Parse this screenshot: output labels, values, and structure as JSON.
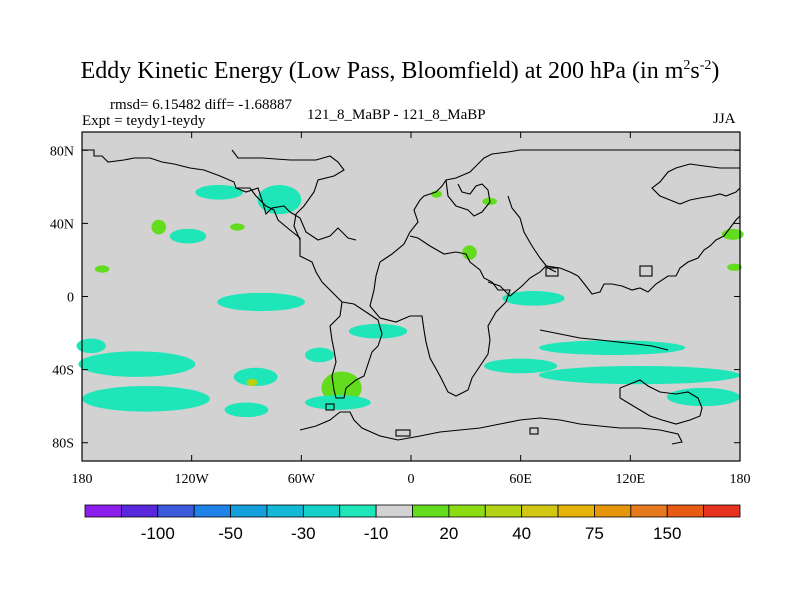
{
  "chart_data": {
    "type": "heatmap",
    "title": {
      "main": "Eddy Kinetic Energy (Low Pass, Bloomfield) at 200 hPa (in m",
      "sup1": "2",
      "mid": "s",
      "sup2": "-2",
      "end": ")"
    },
    "stats": "rmsd= 6.15482 diff= -1.68887",
    "expt": "Expt = teydy1-teydy",
    "case_label": "121_8_MaBP - 121_8_MaBP",
    "season": "JJA",
    "lon_range": [
      -180,
      180
    ],
    "lat_range": [
      -90,
      90
    ],
    "x_ticks": [
      {
        "value": -180,
        "label": "180"
      },
      {
        "value": -120,
        "label": "120W"
      },
      {
        "value": -60,
        "label": "60W"
      },
      {
        "value": 0,
        "label": "0"
      },
      {
        "value": 60,
        "label": "60E"
      },
      {
        "value": 120,
        "label": "120E"
      },
      {
        "value": 180,
        "label": "180"
      }
    ],
    "y_ticks": [
      {
        "value": 80,
        "label": "80N"
      },
      {
        "value": 40,
        "label": "40N"
      },
      {
        "value": 0,
        "label": "0"
      },
      {
        "value": -40,
        "label": "40S"
      },
      {
        "value": -80,
        "label": "80S"
      }
    ],
    "colorbar": {
      "colors": [
        "#8c1eeb",
        "#5a28dc",
        "#3c5adc",
        "#1e82e6",
        "#14a0dc",
        "#14b9d7",
        "#14d2c8",
        "#1ee6b9",
        "#d2d2d2",
        "#64dc1e",
        "#8cdc14",
        "#b4d214",
        "#d2c814",
        "#e6b40a",
        "#e6960a",
        "#e6781e",
        "#e65a14",
        "#e6321e"
      ],
      "labels": [
        {
          "index": 2,
          "text": "-100"
        },
        {
          "index": 4,
          "text": "-50"
        },
        {
          "index": 6,
          "text": "-30"
        },
        {
          "index": 8,
          "text": "-10"
        },
        {
          "index": 10,
          "text": "20"
        },
        {
          "index": 12,
          "text": "40"
        },
        {
          "index": 14,
          "text": "75"
        },
        {
          "index": 16,
          "text": "150"
        }
      ]
    },
    "background_color": "#d2d2d2",
    "anomalies": [
      {
        "name": "neg-n-pacific-1",
        "lon": -105,
        "lat": 57,
        "rlon": 13,
        "rlat": 4,
        "level": "neg"
      },
      {
        "name": "neg-n-america-1",
        "lon": -72,
        "lat": 53,
        "rlon": 12,
        "rlat": 8,
        "level": "neg"
      },
      {
        "name": "pos-n-atlantic-1",
        "lon": 14,
        "lat": 56,
        "rlon": 3,
        "rlat": 2,
        "level": "pos"
      },
      {
        "name": "pos-central-asia-1",
        "lon": 43,
        "lat": 52,
        "rlon": 4,
        "rlat": 2,
        "level": "pos"
      },
      {
        "name": "pos-e-pacific-1",
        "lon": -138,
        "lat": 38,
        "rlon": 4,
        "rlat": 4,
        "level": "pos"
      },
      {
        "name": "pos-atlantic-1",
        "lon": -95,
        "lat": 38,
        "rlon": 4,
        "rlat": 2,
        "level": "pos"
      },
      {
        "name": "neg-mexico-1",
        "lon": -122,
        "lat": 33,
        "rlon": 10,
        "rlat": 4,
        "level": "neg"
      },
      {
        "name": "pos-africa-1",
        "lon": 32,
        "lat": 24,
        "rlon": 4,
        "rlat": 4,
        "level": "pos"
      },
      {
        "name": "pos-w-pacific-1",
        "lon": -169,
        "lat": 15,
        "rlon": 4,
        "rlat": 2,
        "level": "pos"
      },
      {
        "name": "pos-w-pacific-2",
        "lon": 177,
        "lat": 16,
        "rlon": 4,
        "rlat": 2,
        "level": "pos"
      },
      {
        "name": "pos-w-pacific-3",
        "lon": 176,
        "lat": 34,
        "rlon": 6,
        "rlat": 3,
        "level": "pos"
      },
      {
        "name": "neg-eq-pacific-1",
        "lon": -82,
        "lat": -3,
        "rlon": 24,
        "rlat": 5,
        "level": "neg"
      },
      {
        "name": "neg-eq-atlantic-1",
        "lon": -18,
        "lat": -19,
        "rlon": 16,
        "rlat": 4,
        "level": "neg"
      },
      {
        "name": "neg-eq-indian-1",
        "lon": 67,
        "lat": -1,
        "rlon": 17,
        "rlat": 4,
        "level": "neg"
      },
      {
        "name": "neg-s-pacific-1",
        "lon": -150,
        "lat": -37,
        "rlon": 32,
        "rlat": 7,
        "level": "neg"
      },
      {
        "name": "neg-s-pacific-2",
        "lon": -175,
        "lat": -27,
        "rlon": 8,
        "rlat": 4,
        "level": "neg"
      },
      {
        "name": "neg-s-pacific-3",
        "lon": -145,
        "lat": -56,
        "rlon": 35,
        "rlat": 7,
        "level": "neg"
      },
      {
        "name": "neg-s-pacific-4",
        "lon": -90,
        "lat": -62,
        "rlon": 12,
        "rlat": 4,
        "level": "neg"
      },
      {
        "name": "neg-s-pacific-5",
        "lon": -85,
        "lat": -44,
        "rlon": 12,
        "rlat": 5,
        "level": "neg"
      },
      {
        "name": "pos-s-pacific-1",
        "lon": -87,
        "lat": -47,
        "rlon": 3,
        "rlat": 2,
        "level": "pos2"
      },
      {
        "name": "neg-s-atlantic-1",
        "lon": -50,
        "lat": -32,
        "rlon": 8,
        "rlat": 4,
        "level": "neg"
      },
      {
        "name": "pos-s-atlantic-1",
        "lon": -38,
        "lat": -50,
        "rlon": 11,
        "rlat": 9,
        "level": "pos"
      },
      {
        "name": "neg-s-ocean-1",
        "lon": -40,
        "lat": -58,
        "rlon": 18,
        "rlat": 4,
        "level": "neg"
      },
      {
        "name": "neg-s-indian-1",
        "lon": 60,
        "lat": -38,
        "rlon": 20,
        "rlat": 4,
        "level": "neg"
      },
      {
        "name": "neg-s-indian-2",
        "lon": 125,
        "lat": -43,
        "rlon": 55,
        "rlat": 5,
        "level": "neg"
      },
      {
        "name": "neg-s-indian-3",
        "lon": 110,
        "lat": -28,
        "rlon": 40,
        "rlat": 4,
        "level": "neg"
      },
      {
        "name": "neg-s-indian-4",
        "lon": 160,
        "lat": -55,
        "rlon": 20,
        "rlat": 5,
        "level": "neg"
      }
    ]
  }
}
